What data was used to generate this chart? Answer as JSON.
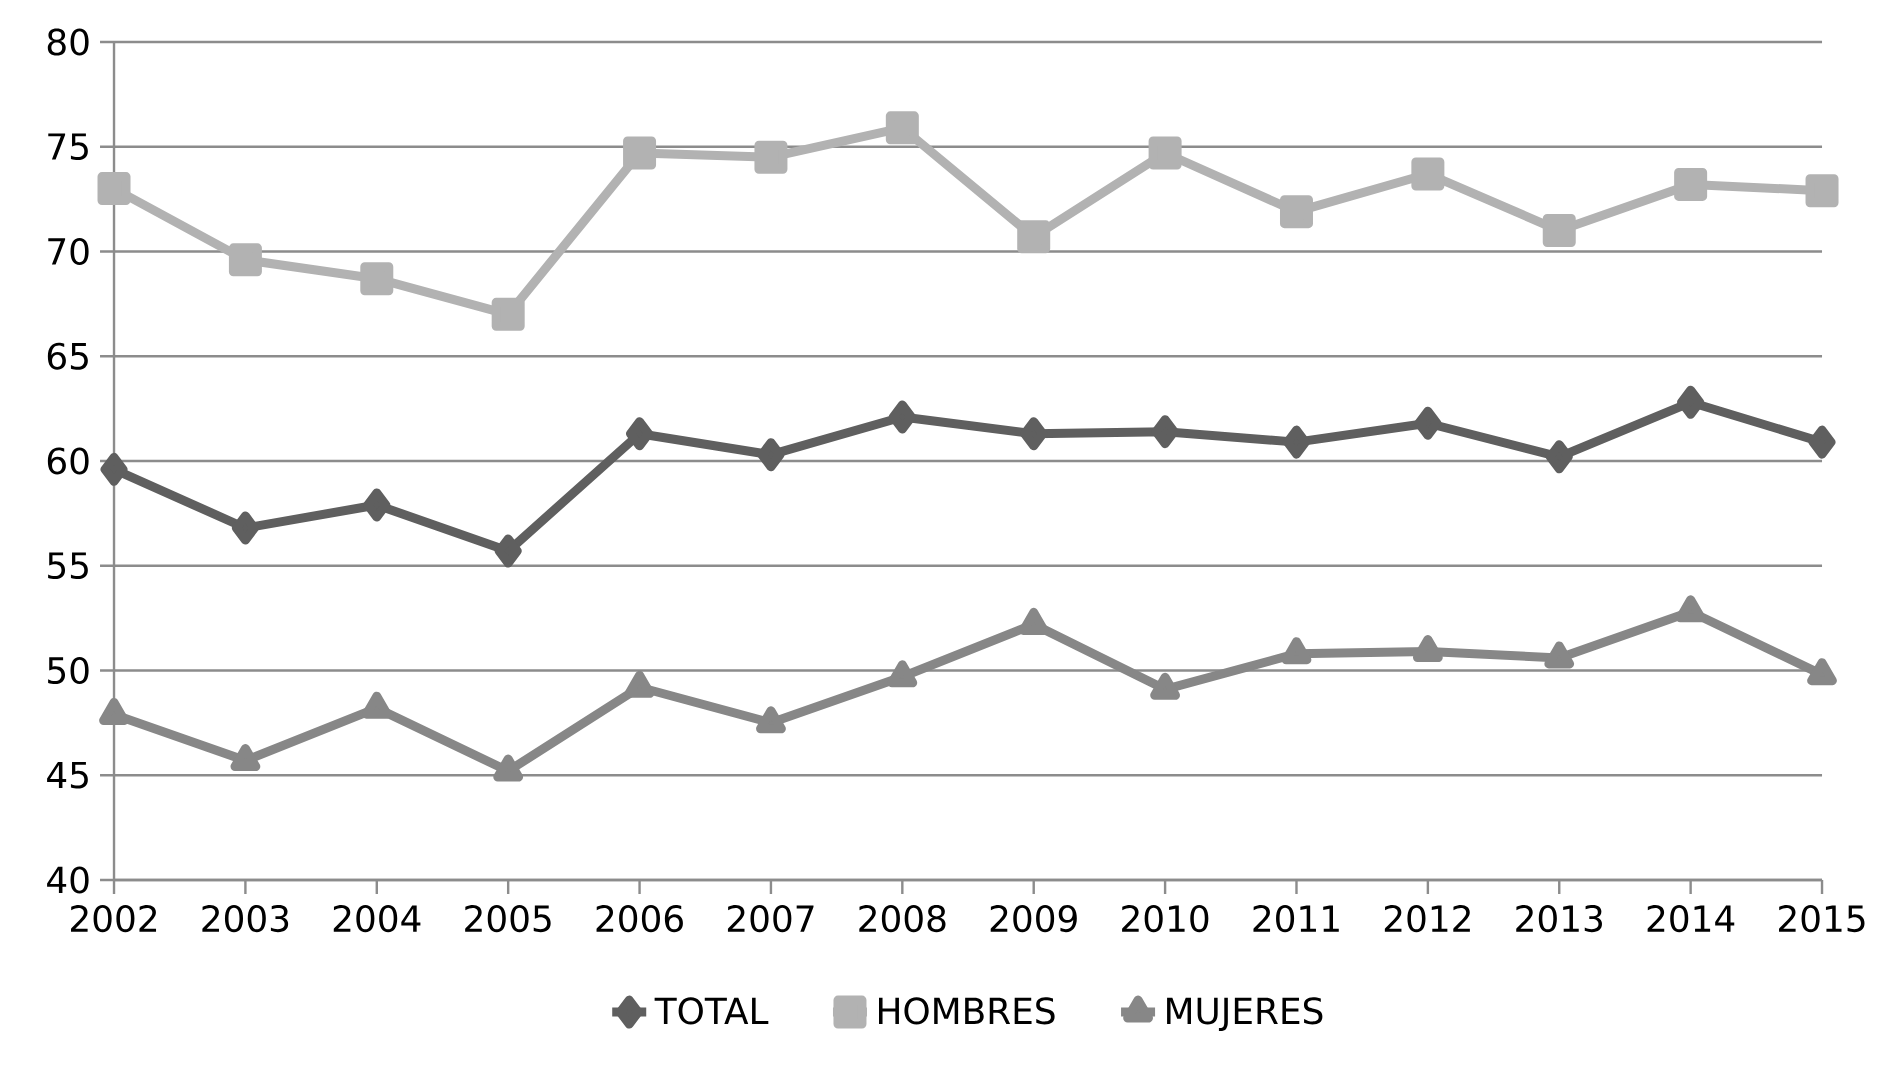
{
  "chart_data": {
    "type": "line",
    "categories": [
      "2002",
      "2003",
      "2004",
      "2005",
      "2006",
      "2007",
      "2008",
      "2009",
      "2010",
      "2011",
      "2012",
      "2013",
      "2014",
      "2015"
    ],
    "series": [
      {
        "name": "TOTAL",
        "color": "#5f5f5f",
        "marker": "diamond",
        "values": [
          59.6,
          56.8,
          57.9,
          55.7,
          61.3,
          60.3,
          62.1,
          61.3,
          61.4,
          60.9,
          61.8,
          60.2,
          62.8,
          60.9
        ]
      },
      {
        "name": "HOMBRES",
        "color": "#b2b2b2",
        "marker": "square",
        "values": [
          73.0,
          69.6,
          68.7,
          67.0,
          74.7,
          74.5,
          75.9,
          70.7,
          74.7,
          71.9,
          73.7,
          71.0,
          73.2,
          72.9
        ]
      },
      {
        "name": "MUJERES",
        "color": "#878787",
        "marker": "triangle",
        "values": [
          47.9,
          45.7,
          48.2,
          45.2,
          49.2,
          47.5,
          49.7,
          52.2,
          49.1,
          50.8,
          50.9,
          50.6,
          52.8,
          49.8
        ]
      }
    ],
    "ylim": [
      40,
      80
    ],
    "yticks": [
      40,
      45,
      50,
      55,
      60,
      65,
      70,
      75,
      80
    ],
    "grid": "y",
    "legend": "bottom",
    "line_style": "solid"
  }
}
